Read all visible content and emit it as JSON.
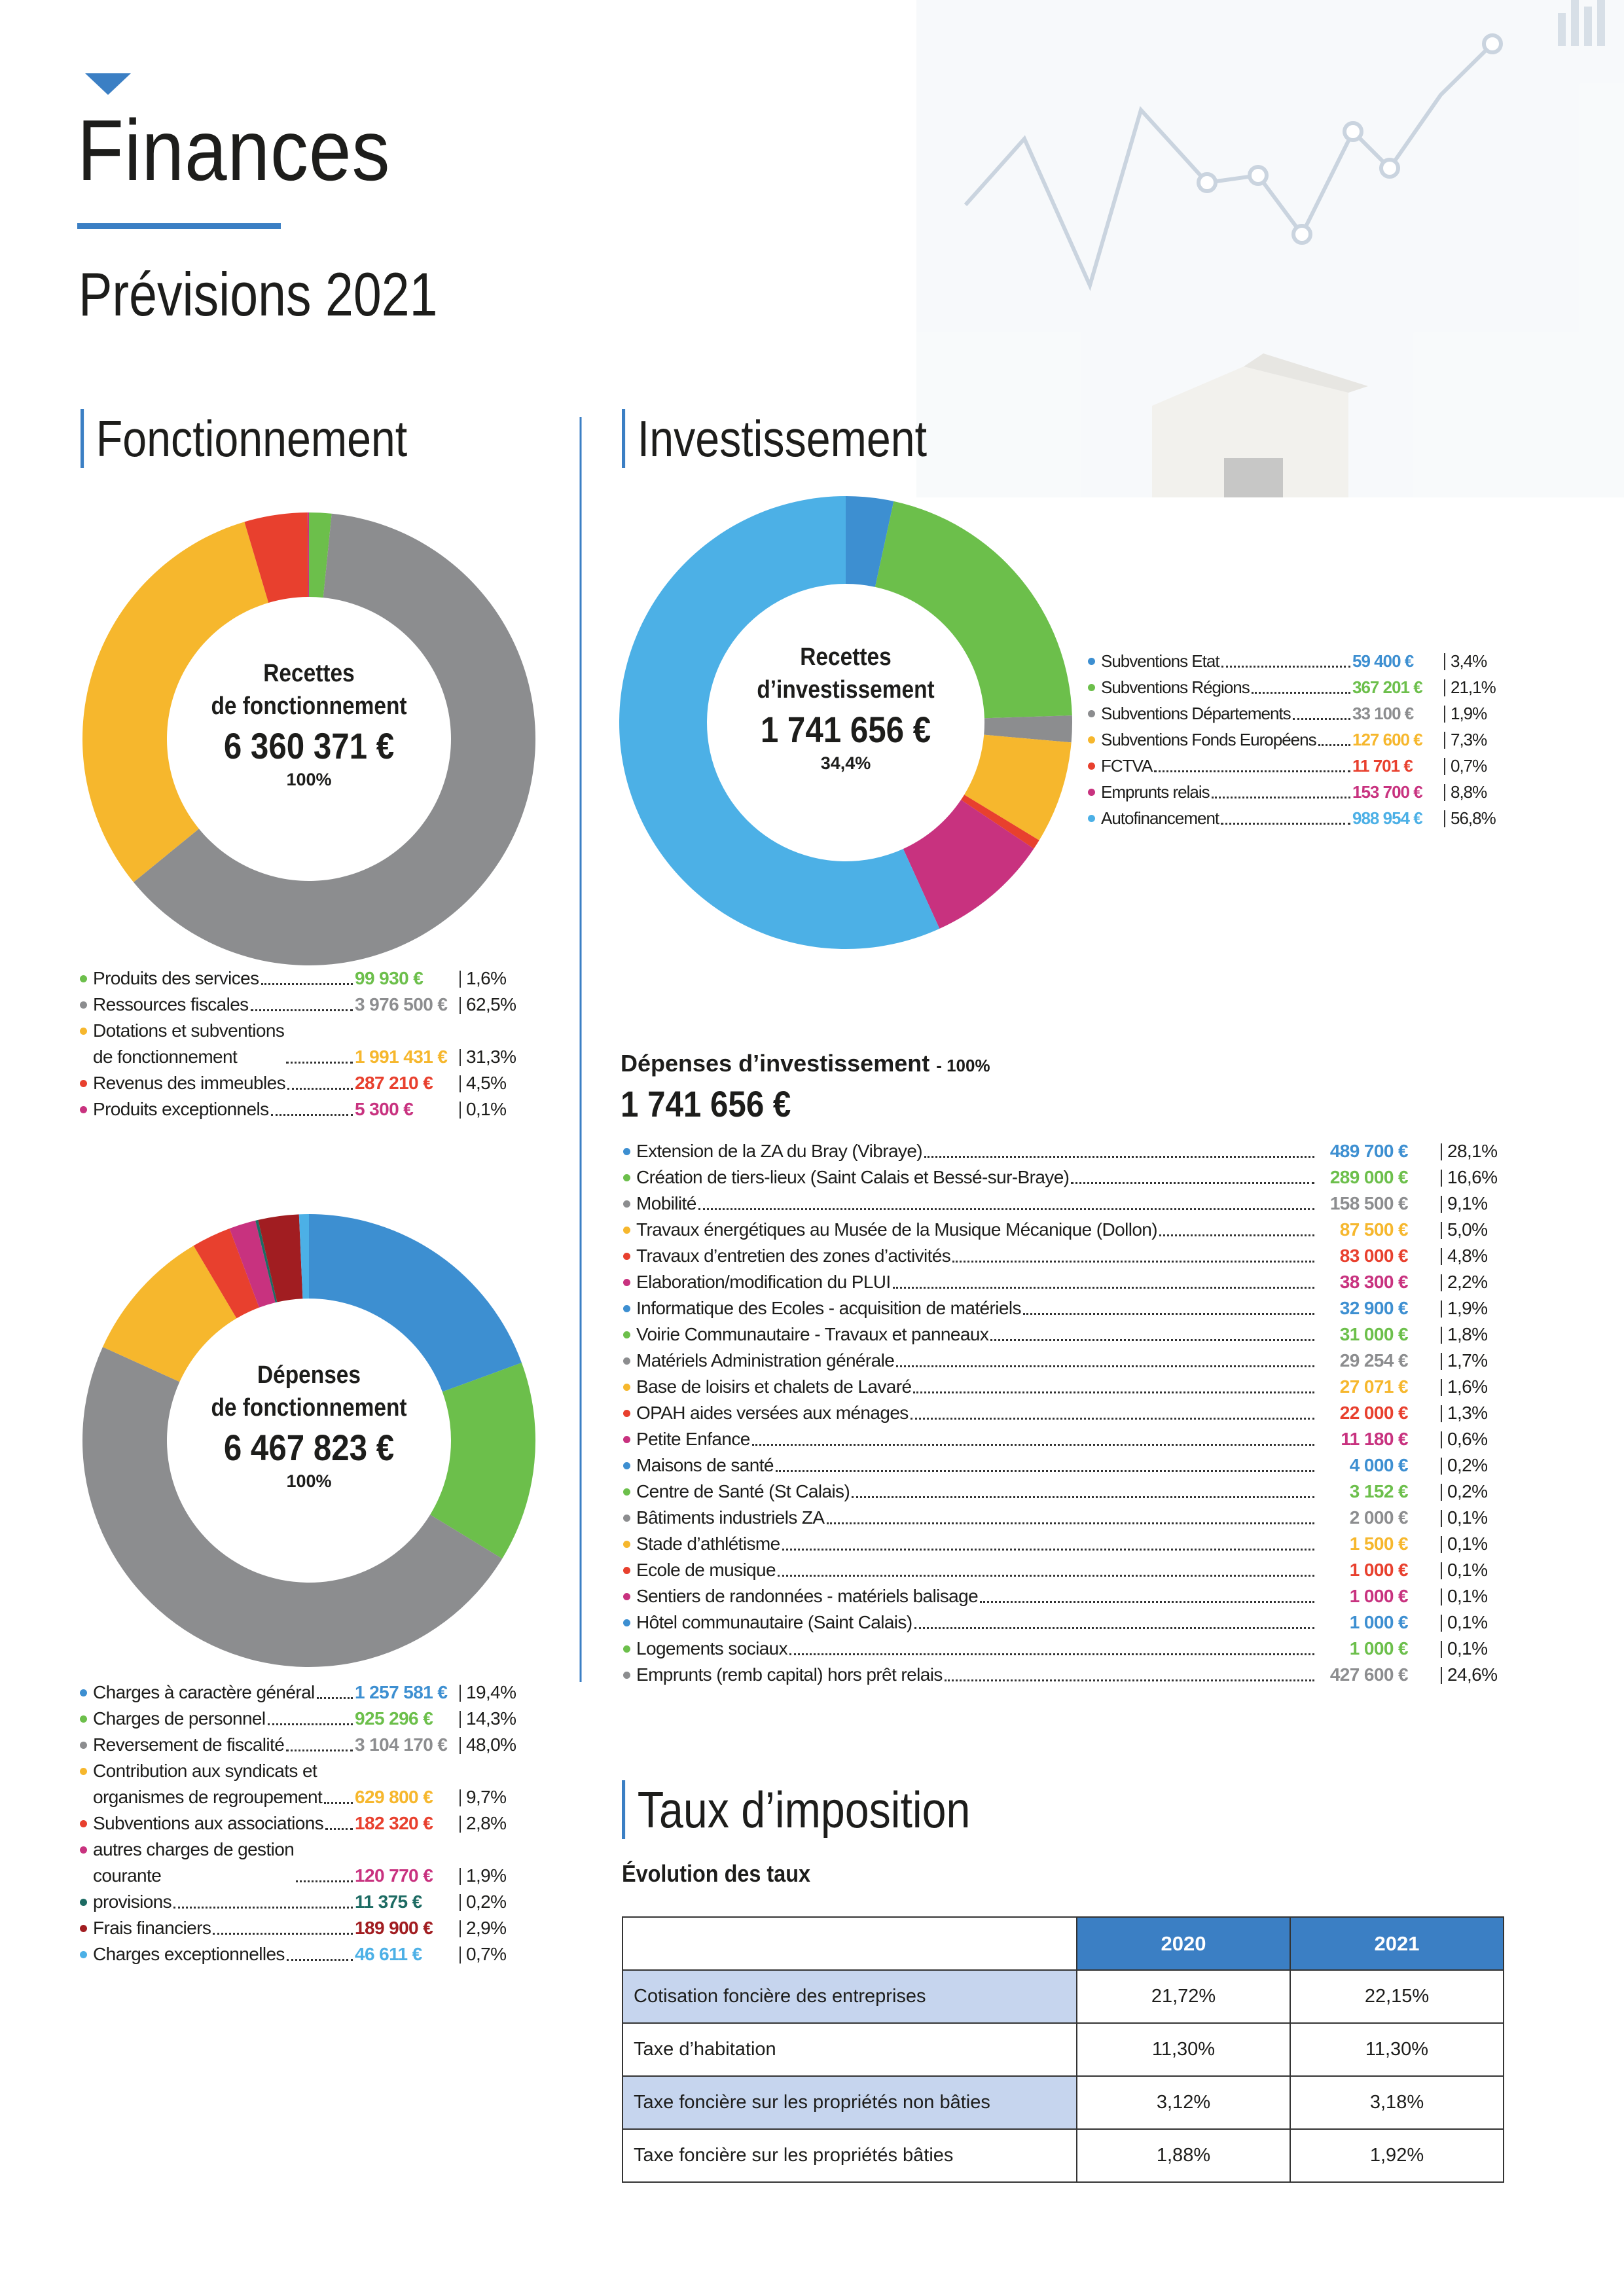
{
  "header": {
    "title": "Finances",
    "subtitle": "Prévisions 2021"
  },
  "sections": {
    "fonctionnement": "Fonctionnement",
    "investissement": "Investissement",
    "taux": "Taux d’imposition"
  },
  "chart_data": [
    {
      "type": "pie",
      "donut": true,
      "title": "Recettes\nde fonctionnement",
      "total": "6 360 371 €",
      "share": "100%",
      "categories": [
        "Produits des services",
        "Ressources fiscales",
        "Dotations et subventions\nde fonctionnement",
        "Revenus des immeubles",
        "Produits exceptionnels"
      ],
      "values": [
        1.6,
        62.5,
        31.3,
        4.5,
        0.1
      ],
      "value_labels": [
        "1,6%",
        "62,5%",
        "31,3%",
        "4,5%",
        "0,1%"
      ],
      "amounts": [
        "99 930 €",
        "3 976 500 €",
        "1 991 431 €",
        "287 210 €",
        "5 300 €"
      ],
      "colors": [
        "#6cbf4b",
        "#8c8d8f",
        "#f6b72d",
        "#e8402e",
        "#c8327f"
      ]
    },
    {
      "type": "pie",
      "donut": true,
      "title": "Recettes\nd’investissement",
      "total": "1 741 656 €",
      "share": "34,4%",
      "categories": [
        "Subventions Etat",
        "Subventions Régions",
        "Subventions Départements",
        "Subventions Fonds Européens",
        "FCTVA",
        "Emprunts relais",
        "Autofinancement"
      ],
      "values": [
        3.4,
        21.1,
        1.9,
        7.3,
        0.7,
        8.8,
        56.8
      ],
      "value_labels": [
        "3,4%",
        "21,1%",
        "1,9%",
        "7,3%",
        "0,7%",
        "8,8%",
        "56,8%"
      ],
      "amounts": [
        "59 400 €",
        "367 201 €",
        "33 100 €",
        "127 600 €",
        "11 701 €",
        "153 700 €",
        "988 954 €"
      ],
      "colors": [
        "#3d8fd1",
        "#6cbf4b",
        "#8c8d8f",
        "#f6b72d",
        "#e8402e",
        "#c8327f",
        "#4cb0e6"
      ]
    },
    {
      "type": "pie",
      "donut": true,
      "title": "Dépenses\nde fonctionnement",
      "total": "6 467 823 €",
      "share": "100%",
      "categories": [
        "Charges à caractère général",
        "Charges de personnel",
        "Reversement de fiscalité",
        "Contribution aux syndicats et\norganismes de regroupement",
        "Subventions aux associations",
        "autres charges de gestion\ncourante",
        "provisions",
        "Frais financiers",
        "Charges exceptionnelles"
      ],
      "values": [
        19.4,
        14.3,
        48.0,
        9.7,
        2.8,
        1.9,
        0.2,
        2.9,
        0.7
      ],
      "value_labels": [
        "19,4%",
        "14,3%",
        "48,0%",
        "9,7%",
        "2,8%",
        "1,9%",
        "0,2%",
        "2,9%",
        "0,7%"
      ],
      "amounts": [
        "1 257 581 €",
        "925 296 €",
        "3 104 170 €",
        "629 800 €",
        "182 320 €",
        "120 770 €",
        "11 375 €",
        "189 900 €",
        "46 611 €"
      ],
      "colors": [
        "#3d8fd1",
        "#6cbf4b",
        "#8c8d8f",
        "#f6b72d",
        "#e8402e",
        "#c8327f",
        "#1d6b63",
        "#a11d21",
        "#4cb0e6"
      ]
    }
  ],
  "depenses_investissement": {
    "title": "Dépenses d’investissement",
    "share": "- 100%",
    "total": "1 741 656 €",
    "items": [
      {
        "name": "Extension de la ZA du Bray (Vibraye)",
        "amount": "489 700 €",
        "percent": "28,1%",
        "color": "#3d8fd1"
      },
      {
        "name": "Création de tiers-lieux (Saint Calais et Bessé-sur-Braye)",
        "amount": "289 000 €",
        "percent": "16,6%",
        "color": "#6cbf4b"
      },
      {
        "name": "Mobilité",
        "amount": "158 500 €",
        "percent": "9,1%",
        "color": "#8c8d8f"
      },
      {
        "name": "Travaux énergétiques au Musée de la Musique Mécanique (Dollon)",
        "amount": "87 500 €",
        "percent": "5,0%",
        "color": "#f6b72d"
      },
      {
        "name": "Travaux d’entretien des zones d’activités",
        "amount": "83 000 €",
        "percent": "4,8%",
        "color": "#e8402e"
      },
      {
        "name": "Elaboration/modification du PLUI",
        "amount": "38 300 €",
        "percent": "2,2%",
        "color": "#c8327f"
      },
      {
        "name": "Informatique des Ecoles - acquisition de matériels",
        "amount": "32 900 €",
        "percent": "1,9%",
        "color": "#3d8fd1"
      },
      {
        "name": "Voirie Communautaire - Travaux et panneaux",
        "amount": "31 000 €",
        "percent": "1,8%",
        "color": "#6cbf4b"
      },
      {
        "name": "Matériels Administration générale",
        "amount": "29 254 €",
        "percent": "1,7%",
        "color": "#8c8d8f"
      },
      {
        "name": "Base de loisirs et chalets de Lavaré",
        "amount": "27 071 €",
        "percent": "1,6%",
        "color": "#f6b72d"
      },
      {
        "name": "OPAH aides versées aux ménages",
        "amount": "22 000 €",
        "percent": "1,3%",
        "color": "#e8402e"
      },
      {
        "name": "Petite Enfance",
        "amount": "11 180 €",
        "percent": "0,6%",
        "color": "#c8327f"
      },
      {
        "name": "Maisons de santé",
        "amount": "4 000 €",
        "percent": "0,2%",
        "color": "#3d8fd1"
      },
      {
        "name": "Centre de Santé (St Calais)",
        "amount": "3 152 €",
        "percent": "0,2%",
        "color": "#6cbf4b"
      },
      {
        "name": "Bâtiments industriels ZA",
        "amount": "2 000 €",
        "percent": "0,1%",
        "color": "#8c8d8f"
      },
      {
        "name": "Stade d’athlétisme",
        "amount": "1 500 €",
        "percent": "0,1%",
        "color": "#f6b72d"
      },
      {
        "name": "Ecole de musique",
        "amount": "1 000 €",
        "percent": "0,1%",
        "color": "#e8402e"
      },
      {
        "name": "Sentiers de randonnées - matériels balisage",
        "amount": "1 000 €",
        "percent": "0,1%",
        "color": "#c8327f"
      },
      {
        "name": "Hôtel communautaire (Saint Calais)",
        "amount": "1 000 €",
        "percent": "0,1%",
        "color": "#3d8fd1"
      },
      {
        "name": "Logements sociaux",
        "amount": "1 000 €",
        "percent": "0,1%",
        "color": "#6cbf4b"
      },
      {
        "name": "Emprunts (remb capital) hors prêt relais",
        "amount": "427 600 €",
        "percent": "24,6%",
        "color": "#8c8d8f"
      }
    ]
  },
  "table": {
    "title": "Évolution des taux",
    "columns": [
      "2020",
      "2021"
    ],
    "rows": [
      [
        "Cotisation foncière des entreprises",
        "21,72%",
        "22,15%"
      ],
      [
        "Taxe d’habitation",
        "11,30%",
        "11,30%"
      ],
      [
        "Taxe foncière sur les propriétés non bâties",
        "3,12%",
        "3,18%"
      ],
      [
        "Taxe foncière sur les propriétés bâties",
        "1,88%",
        "1,92%"
      ]
    ]
  }
}
